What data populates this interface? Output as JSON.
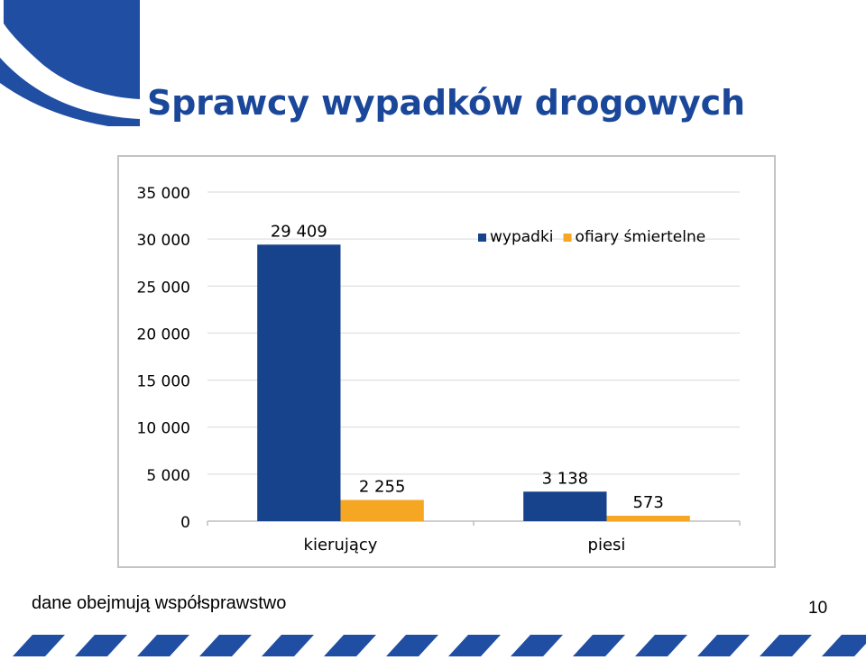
{
  "slide": {
    "title": "Sprawcy wypadków drogowych",
    "footnote": "dane obejmują współsprawstwo",
    "page_number": "10"
  },
  "colors": {
    "title": "#1a4799",
    "brand_blue": "#1f4ea3",
    "series_wypadki": "#17428c",
    "series_ofiary": "#f5a623",
    "gridline": "#d9d9d9",
    "axis": "#bfbfbf"
  },
  "chart_data": {
    "type": "bar",
    "categories": [
      "kierujący",
      "piesi"
    ],
    "series": [
      {
        "name": "wypadki",
        "values": [
          29409,
          3138
        ],
        "labels": [
          "29 409",
          "3 138"
        ],
        "color": "#17428c"
      },
      {
        "name": "ofiary śmiertelne",
        "values": [
          2255,
          573
        ],
        "labels": [
          "2 255",
          "573"
        ],
        "color": "#f5a623"
      }
    ],
    "ylim": [
      0,
      35000
    ],
    "yticks": [
      0,
      5000,
      10000,
      15000,
      20000,
      25000,
      30000,
      35000
    ],
    "ytick_labels": [
      "0",
      "5 000",
      "10 000",
      "15 000",
      "20 000",
      "25 000",
      "30 000",
      "35 000"
    ],
    "title": "",
    "xlabel": "",
    "ylabel": "",
    "grid": true,
    "legend": "top-right"
  }
}
